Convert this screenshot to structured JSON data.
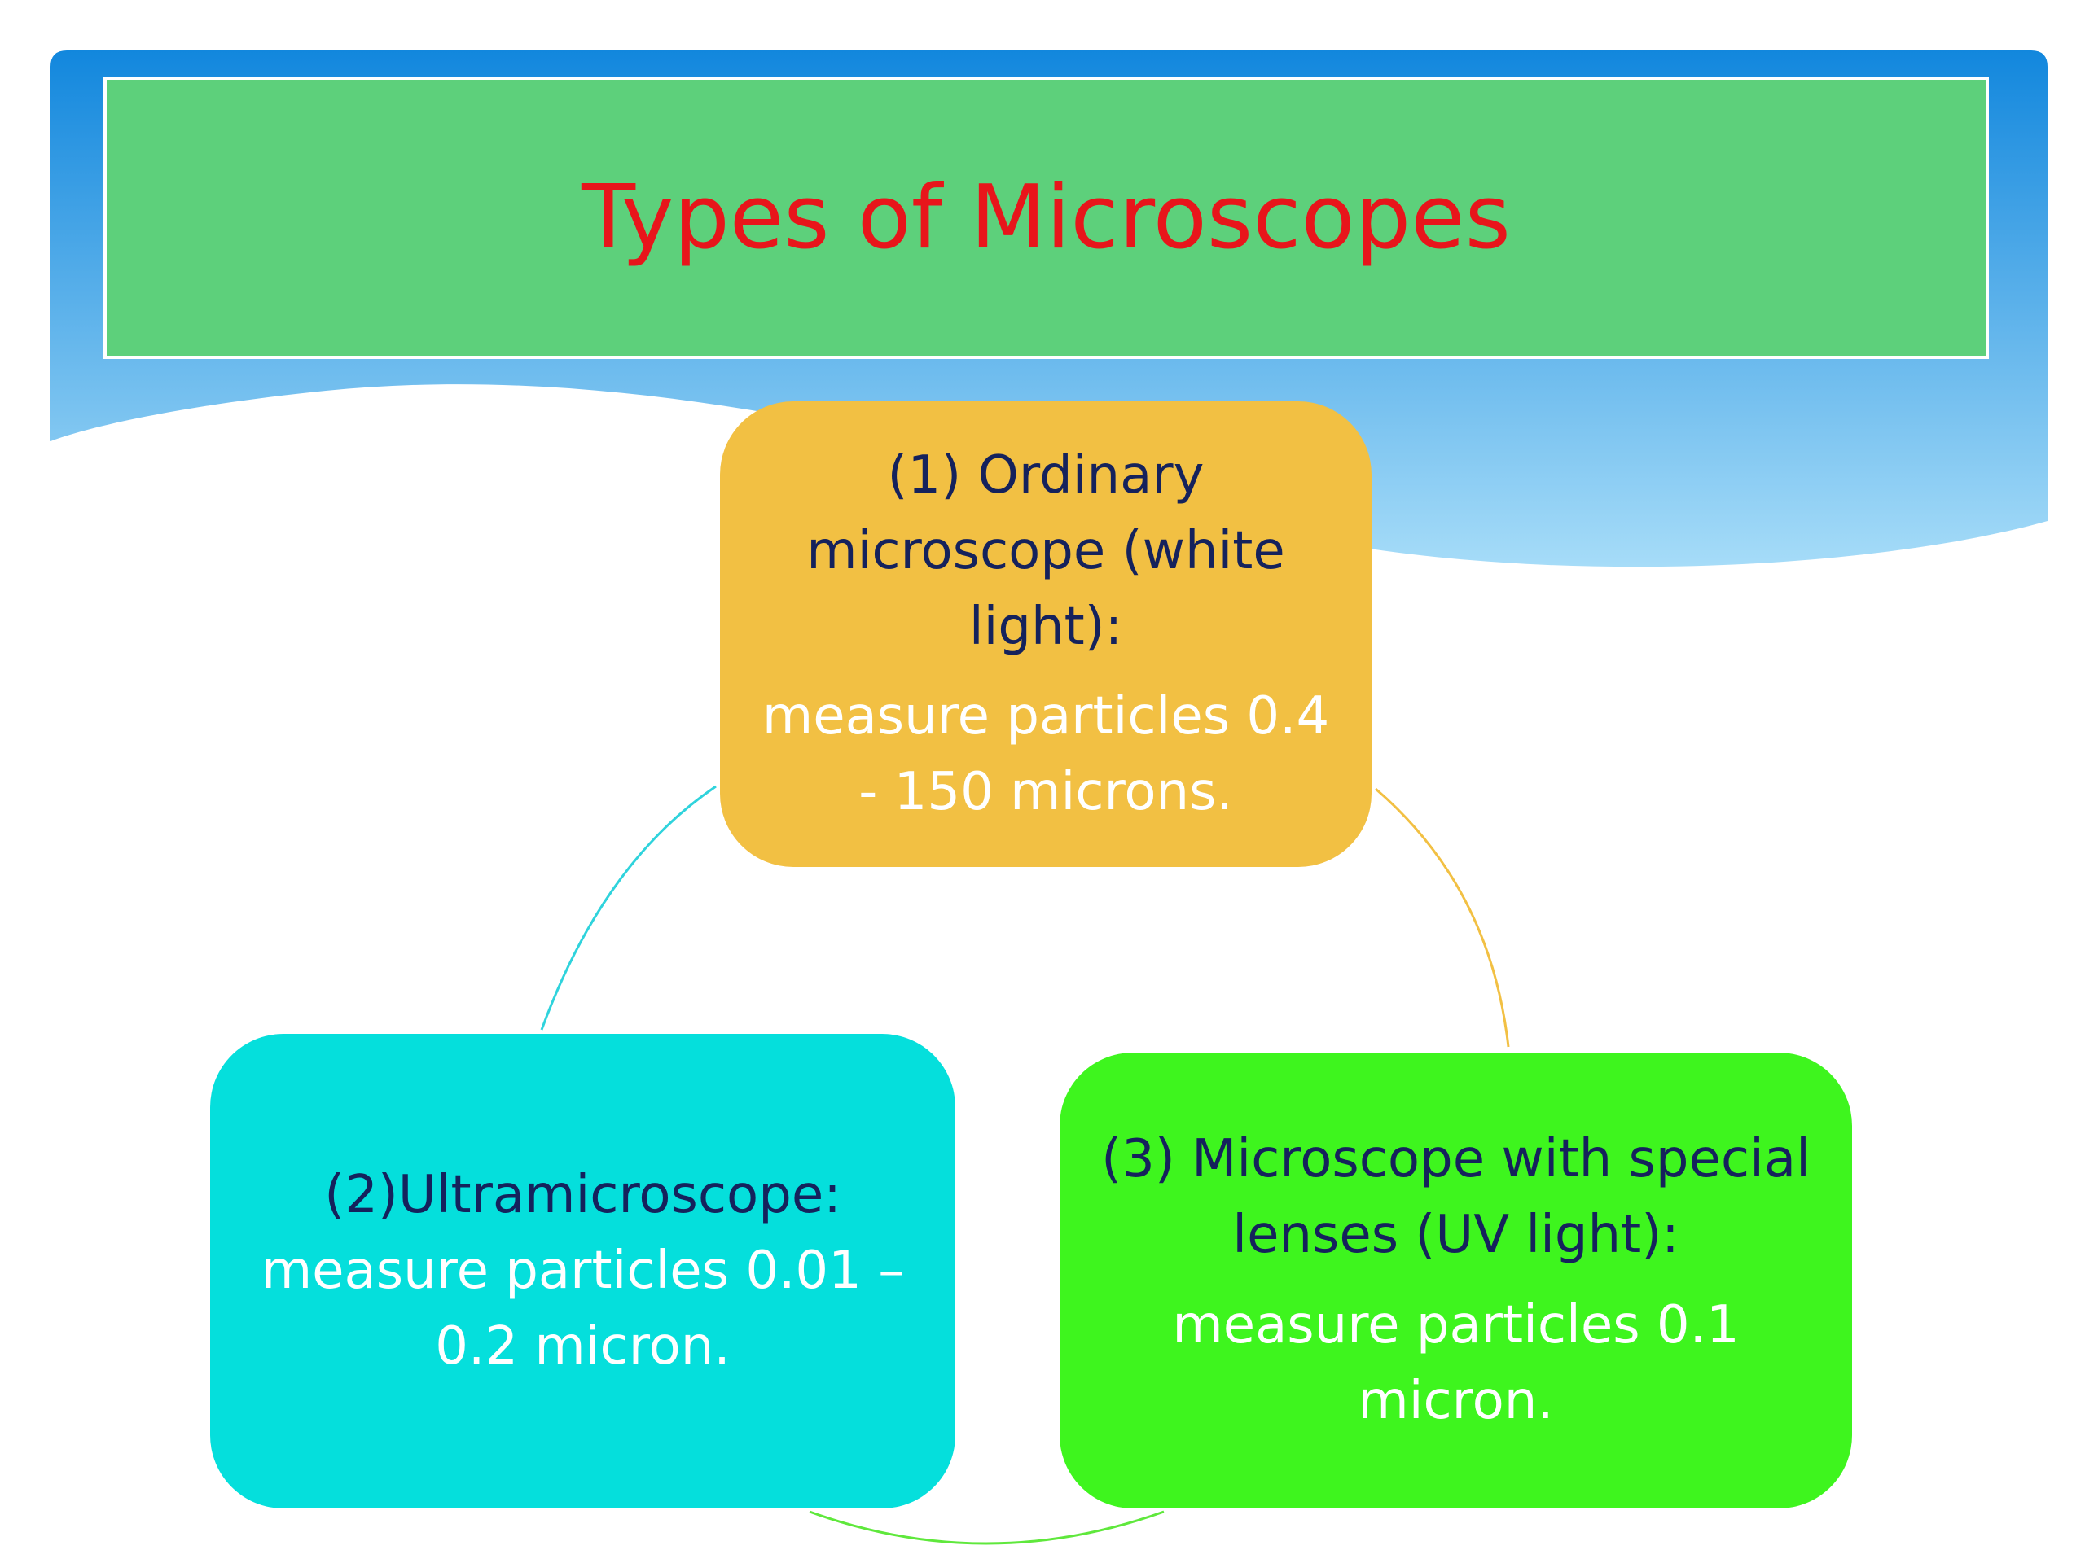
{
  "title": "Types of Microscopes",
  "nodes": [
    {
      "heading": "(1) Ordinary microscope (white light):",
      "description": "measure particles 0.4 - 150 microns."
    },
    {
      "heading": "(2)Ultramicroscope:",
      "description": "measure particles 0.01 – 0.2 micron."
    },
    {
      "heading": "(3) Microscope with special lenses (UV light):",
      "description": "measure particles 0.1 micron."
    }
  ]
}
